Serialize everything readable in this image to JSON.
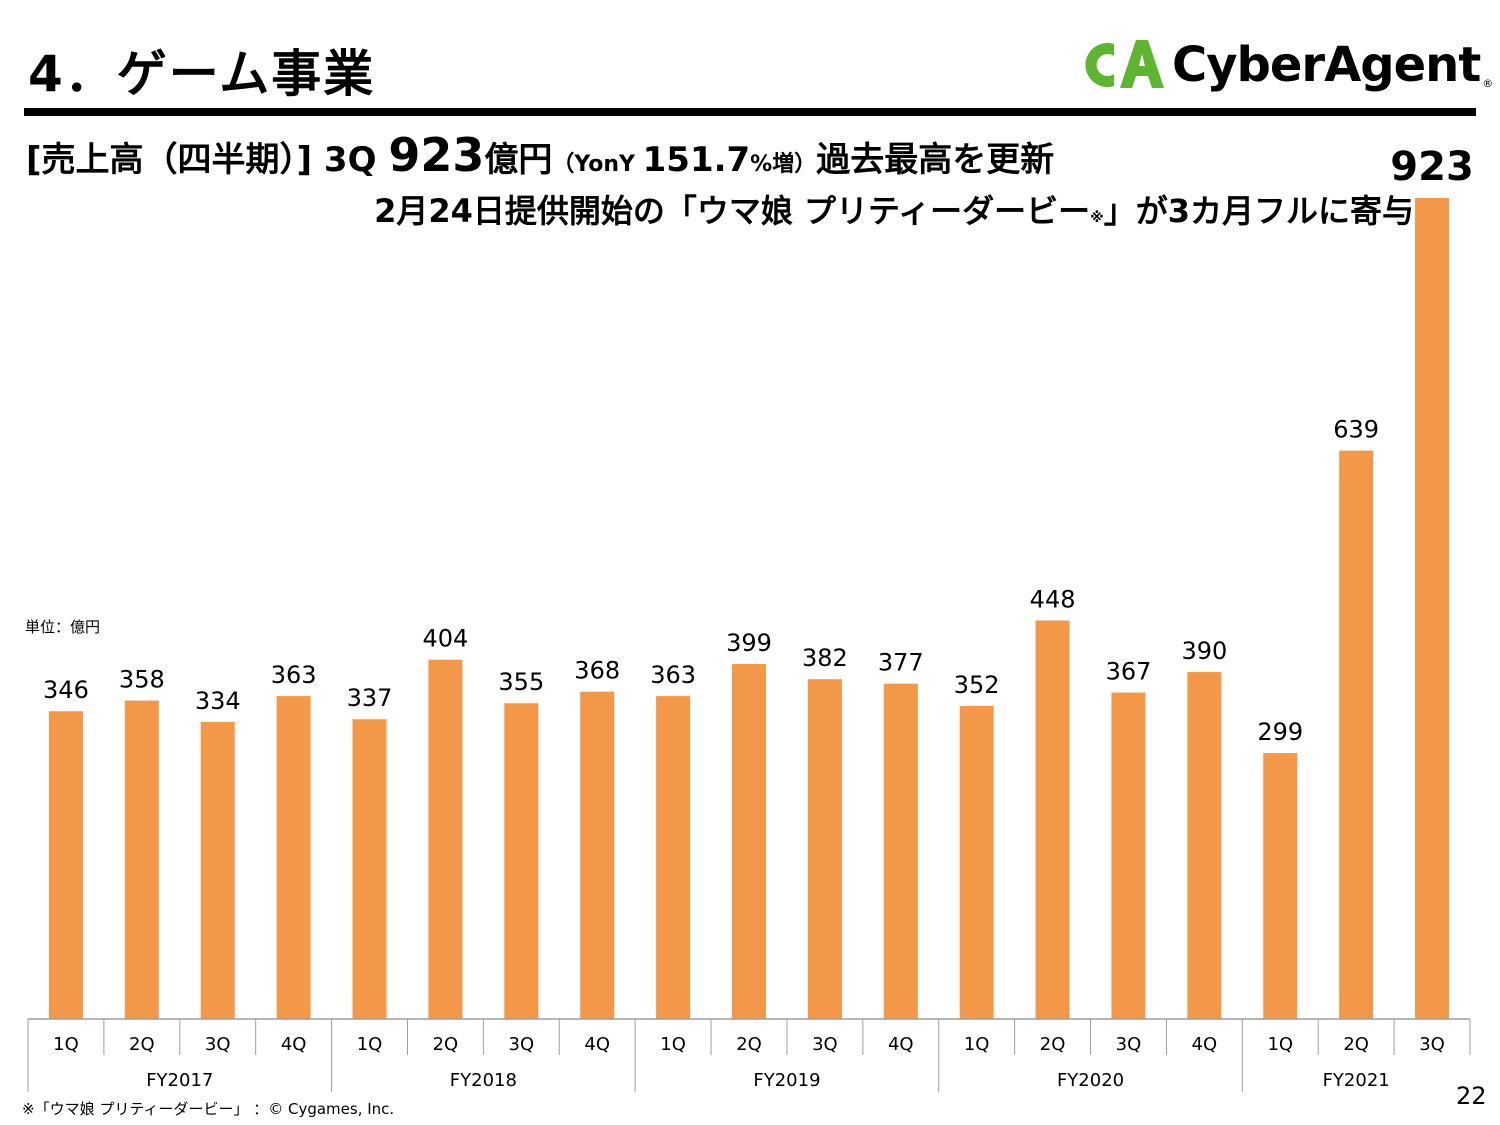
{
  "header": {
    "section_title": "4．ゲーム事業",
    "logo_text": "CyberAgent",
    "logo_registered": "®"
  },
  "headline": {
    "line1_part1": "[売上高（四半期）] 3Q ",
    "line1_value": "923",
    "line1_unit": "億円",
    "line1_yoy_open": "（YonY ",
    "line1_yoy_value": "151.7",
    "line1_yoy_suffix": "%増）",
    "line1_part2": "過去最高を更新",
    "line2_main": "2月24日提供開始の「ウマ娘 プリティーダービー",
    "line2_note_mark": "※",
    "line2_tail": "」が3カ月フルに寄与"
  },
  "unit_label": "単位：億円",
  "footnote": "※「ウマ娘 プリティーダービー」 ：© Cygames, Inc.",
  "page_number": "22",
  "colors": {
    "bar": "#F39748",
    "axis": "#9E9E9E",
    "logo_green": "#5DB531",
    "text": "#000000"
  },
  "chart_data": {
    "type": "bar",
    "quarters": [
      "1Q",
      "2Q",
      "3Q",
      "4Q",
      "1Q",
      "2Q",
      "3Q",
      "4Q",
      "1Q",
      "2Q",
      "3Q",
      "4Q",
      "1Q",
      "2Q",
      "3Q",
      "4Q",
      "1Q",
      "2Q",
      "3Q"
    ],
    "groups": [
      {
        "label": "FY2017",
        "count": 4
      },
      {
        "label": "FY2018",
        "count": 4
      },
      {
        "label": "FY2019",
        "count": 4
      },
      {
        "label": "FY2020",
        "count": 4
      },
      {
        "label": "FY2021",
        "count": 3
      }
    ],
    "values": [
      346,
      358,
      334,
      363,
      337,
      404,
      355,
      368,
      363,
      399,
      382,
      377,
      352,
      448,
      367,
      390,
      299,
      639,
      923
    ],
    "ylim": [
      0,
      923
    ],
    "highlight_last": true
  }
}
